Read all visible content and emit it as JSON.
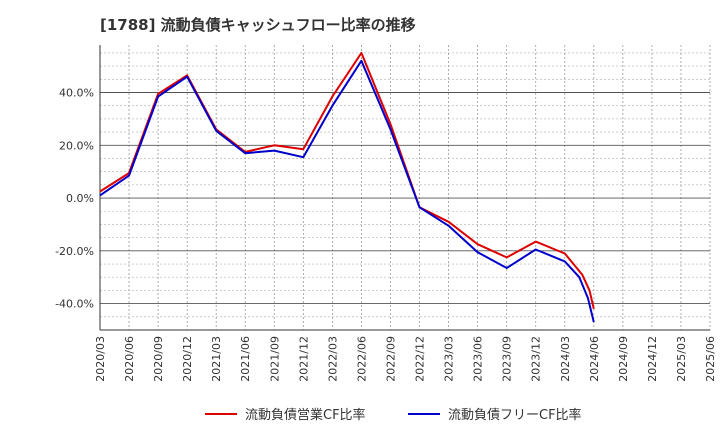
{
  "chart_data": {
    "type": "line",
    "title": "[1788]  流動負債キャッシュフロー比率の推移",
    "xlabel": "",
    "ylabel": "",
    "ylim": [
      -50,
      58
    ],
    "y_ticks": [
      40,
      20,
      0,
      -20,
      -40
    ],
    "y_tick_labels": [
      "40.0%",
      "20.0%",
      "0.0%",
      "-20.0%",
      "-40.0%"
    ],
    "categories": [
      "2020/03",
      "2020/06",
      "2020/09",
      "2020/12",
      "2021/03",
      "2021/06",
      "2021/09",
      "2021/12",
      "2022/03",
      "2022/06",
      "2022/09",
      "2022/12",
      "2023/03",
      "2023/06",
      "2023/09",
      "2023/12",
      "2024/03",
      "2024/06",
      "2024/09",
      "2024/12",
      "2025/03",
      "2025/06"
    ],
    "grid": true,
    "legend_position": "bottom",
    "series": [
      {
        "name": "流動負債営業CF比率",
        "color": "#dd0000",
        "values": [
          2.5,
          9.5,
          39.5,
          46.5,
          26.0,
          17.5,
          20.0,
          18.5,
          38.5,
          55.0,
          28.0,
          -3.5,
          -9.0,
          -17.5,
          -22.5,
          -16.5,
          -21.0,
          -42.0,
          null,
          null,
          null,
          null
        ],
        "extra": [
          {
            "between": [
              16,
              17
            ],
            "points": [
              [
                16.6,
                -29.0
              ],
              [
                16.85,
                -35.0
              ]
            ]
          }
        ]
      },
      {
        "name": "流動負債フリーCF比率",
        "color": "#0000cc",
        "values": [
          1.0,
          8.5,
          38.5,
          46.0,
          25.5,
          17.0,
          18.0,
          15.5,
          35.0,
          52.0,
          26.0,
          -3.5,
          -10.5,
          -20.5,
          -26.5,
          -19.5,
          -24.0,
          -47.0,
          null,
          null,
          null,
          null
        ],
        "extra": [
          {
            "between": [
              16,
              17
            ],
            "points": [
              [
                16.5,
                -30.0
              ],
              [
                16.8,
                -38.0
              ]
            ]
          }
        ]
      }
    ]
  }
}
